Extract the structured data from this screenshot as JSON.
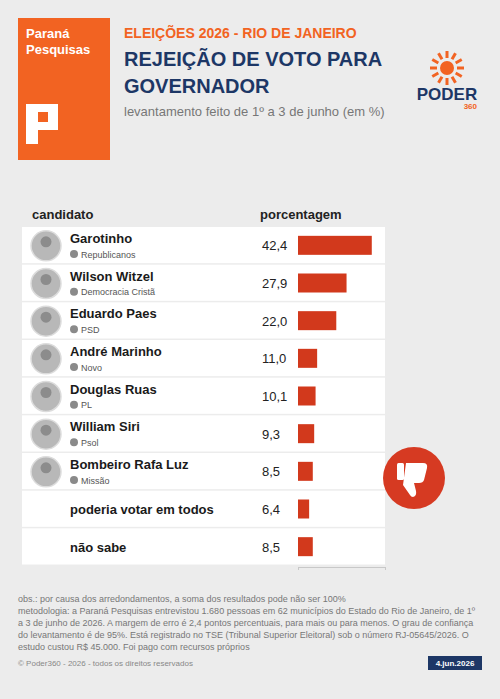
{
  "header": {
    "source": "Paraná Pesquisas",
    "kicker": "ELEIÇÕES 2026 - RIO DE JANEIRO",
    "brand": "PODER",
    "brand_sub": "360"
  },
  "chart_data": {
    "type": "bar",
    "orientation": "horizontal",
    "title": "REJEIÇÃO DE VOTO PARA GOVERNADOR",
    "subtitle": "levantamento feito de 1º a 3 de junho (em %)",
    "ylabel": "candidato",
    "xlabel": "porcentagem",
    "categories": [
      "Garotinho",
      "Wilson Witzel",
      "Eduardo Paes",
      "André Marinho",
      "Douglas Ruas",
      "William Siri",
      "Bombeiro Rafa Luz",
      "poderia votar em todos",
      "não sabe"
    ],
    "parties": [
      "Republicanos",
      "Democracia Cristã",
      "PSD",
      "Novo",
      "PL",
      "Psol",
      "Missão",
      null,
      null
    ],
    "values": [
      42.4,
      27.9,
      22.0,
      11.0,
      10.1,
      9.3,
      8.5,
      6.4,
      8.5
    ],
    "value_labels": [
      "42,4",
      "27,9",
      "22,0",
      "11,0",
      "10,1",
      "9,3",
      "8,5",
      "6,4",
      "8,5"
    ],
    "color": "#d2391c",
    "xlim": [
      0,
      50
    ],
    "xticks": [
      0,
      50
    ],
    "data_labels": true,
    "tick_labels": "y",
    "grid": false
  },
  "footer": {
    "notes": [
      "obs.: por causa dos arredondamentos, a soma dos resultados pode não ser 100%",
      "metodologia: a Paraná Pesquisas entrevistou 1.680 pessoas em 62 municípios do Estado do Rio de Janeiro, de 1º a 3 de junho de 2026. A margem de erro é 2,4 pontos percentuais, para mais ou para menos. O grau de confiança do levantamento é de 95%. Está registrado no TSE (Tribunal Superior Eleitoral) sob o número RJ-05645/2026. O estudo custou R$ 45.000. Foi pago com recursos próprios"
    ],
    "copyright": "© Poder360 - 2026 - todos os direitos reservados",
    "date": "4.jun.2026"
  }
}
